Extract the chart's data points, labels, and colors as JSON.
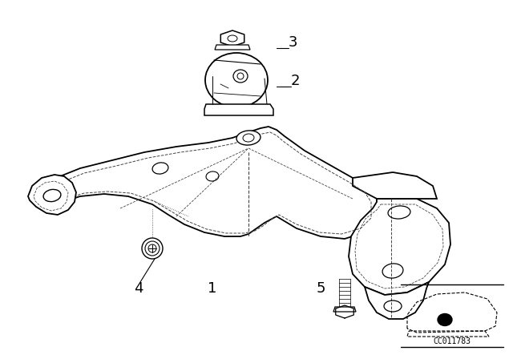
{
  "bg_color": "#ffffff",
  "line_color": "#000000",
  "figsize": [
    6.4,
    4.48
  ],
  "dpi": 100,
  "callout_code": "CC011783"
}
